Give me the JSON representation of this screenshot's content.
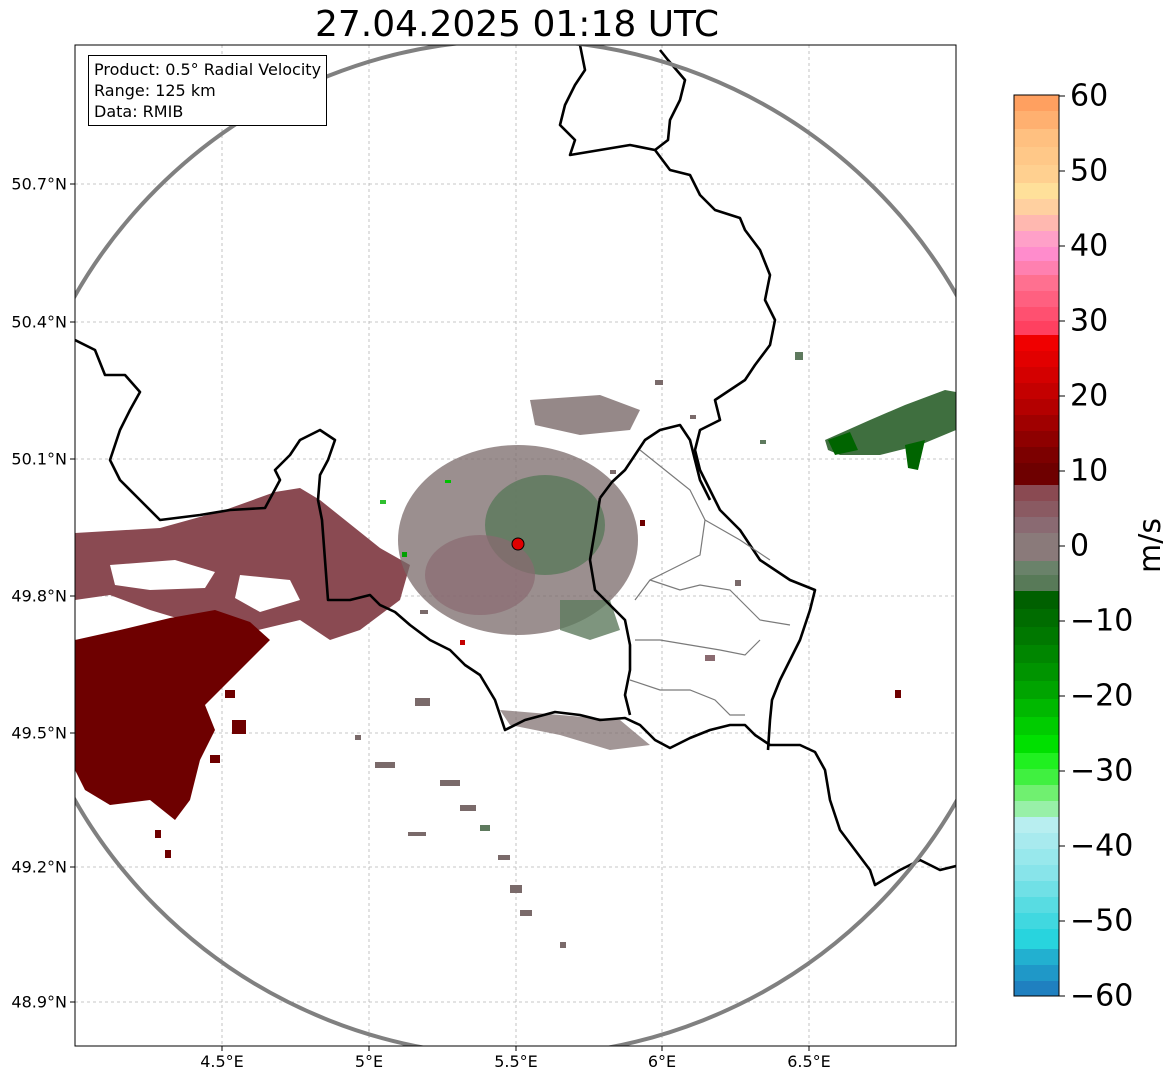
{
  "title": "27.04.2025 01:18 UTC",
  "info": {
    "product": "Product: 0.5° Radial Velocity",
    "range": "Range: 125 km",
    "source": "Data: RMIB"
  },
  "lat_labels": [
    "50.7°N",
    "50.4°N",
    "50.1°N",
    "49.8°N",
    "49.5°N",
    "49.2°N",
    "48.9°N"
  ],
  "lon_labels": [
    "4.5°E",
    "5°E",
    "5.5°E",
    "6°E",
    "6.5°E"
  ],
  "colorbar": {
    "unit": "m/s",
    "ticks": [
      "60",
      "50",
      "40",
      "30",
      "20",
      "10",
      "0",
      "−10",
      "−20",
      "−30",
      "−40",
      "−50",
      "−60"
    ],
    "range": [
      -60,
      60
    ]
  },
  "colors": {
    "inbound_strong": "#1f7fc4",
    "inbound_green": "#00a000",
    "zero": "#808080",
    "outbound_red": "#d40000",
    "outbound_dark": "#6e0000",
    "outbound_max": "#ffa060",
    "range_ring": "#808080",
    "border": "#000000",
    "radar_site": "#e00000"
  }
}
